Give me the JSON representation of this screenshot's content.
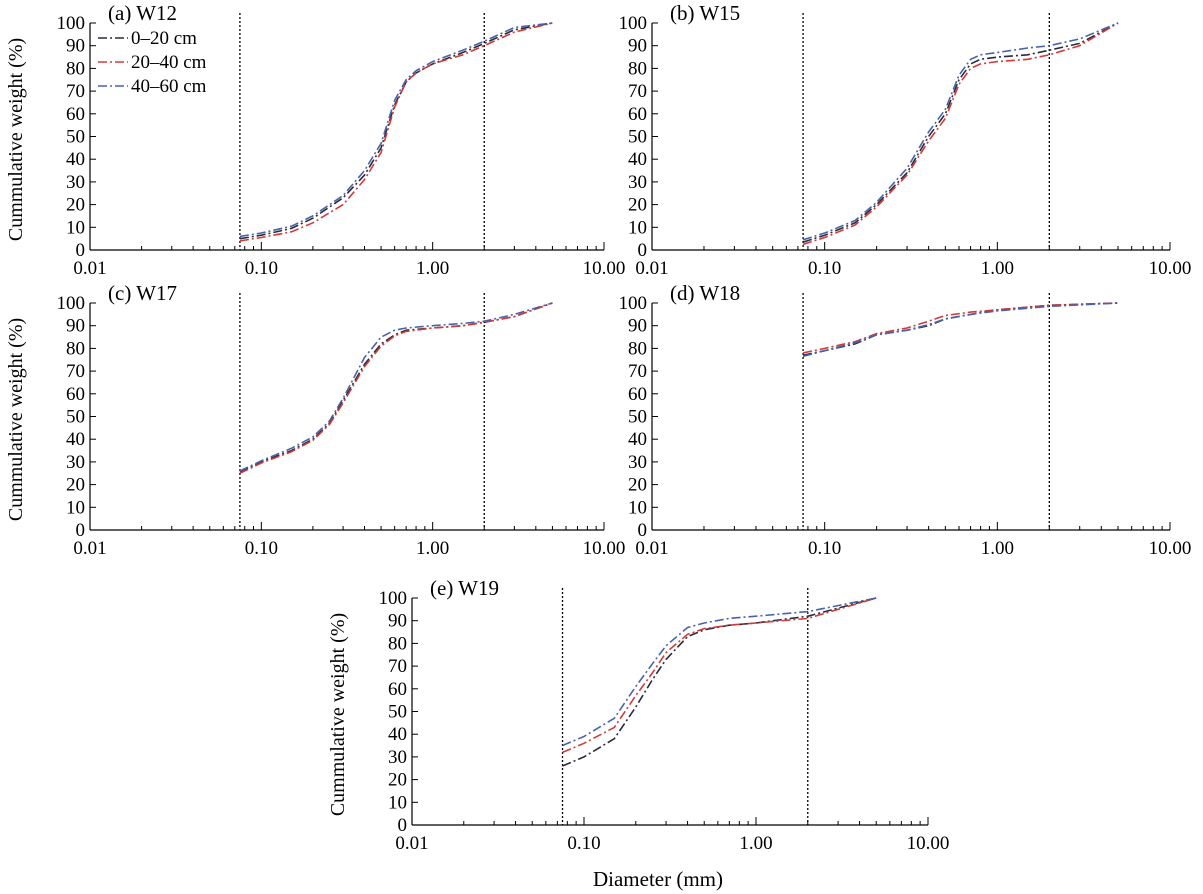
{
  "figure": {
    "xlabel": "Diameter (mm)",
    "ylabel": "Cummulative weight (%)"
  },
  "legend": [
    {
      "label": "0–20 cm",
      "color": "#2b2b3a"
    },
    {
      "label": "20–40 cm",
      "color": "#d23a3a"
    },
    {
      "label": "40–60 cm",
      "color": "#4a63a8"
    }
  ],
  "chart_data": [
    {
      "type": "line",
      "title": "(a) W12",
      "xlabel": "",
      "ylabel": "Cummulative weight (%)",
      "xscale": "log",
      "xlim": [
        0.01,
        10
      ],
      "ylim": [
        0,
        100
      ],
      "xticks": [
        "0.01",
        "0.10",
        "1.00",
        "10.00"
      ],
      "yticks": [
        "0",
        "10",
        "20",
        "30",
        "40",
        "50",
        "60",
        "70",
        "80",
        "90",
        "100"
      ],
      "reference_lines_x": [
        0.075,
        2.0
      ],
      "legend_position": "top-left",
      "series": [
        {
          "name": "0–20 cm",
          "color": "#2b2b3a",
          "x": [
            0.075,
            0.1,
            0.15,
            0.2,
            0.3,
            0.4,
            0.5,
            0.6,
            0.7,
            0.8,
            1.0,
            1.5,
            2.0,
            3.0,
            5.0
          ],
          "y": [
            5,
            6.5,
            9.5,
            14,
            23,
            33,
            45,
            64,
            74,
            78,
            82,
            87,
            91,
            97,
            100
          ]
        },
        {
          "name": "20–40 cm",
          "color": "#d23a3a",
          "x": [
            0.075,
            0.1,
            0.15,
            0.2,
            0.3,
            0.4,
            0.5,
            0.6,
            0.7,
            0.8,
            1.0,
            1.5,
            2.0,
            3.0,
            5.0
          ],
          "y": [
            4,
            5.5,
            8,
            12,
            20,
            31,
            43,
            63,
            74,
            78,
            82,
            86,
            90,
            96,
            100
          ]
        },
        {
          "name": "40–60 cm",
          "color": "#4a63a8",
          "x": [
            0.075,
            0.1,
            0.15,
            0.2,
            0.3,
            0.4,
            0.5,
            0.6,
            0.7,
            0.8,
            1.0,
            1.5,
            2.0,
            3.0,
            5.0
          ],
          "y": [
            6,
            7.5,
            10.5,
            15,
            24,
            35,
            47,
            66,
            75,
            79,
            83,
            88,
            92,
            98,
            100
          ]
        }
      ]
    },
    {
      "type": "line",
      "title": "(b) W15",
      "xlabel": "",
      "ylabel": "",
      "xscale": "log",
      "xlim": [
        0.01,
        10
      ],
      "ylim": [
        0,
        100
      ],
      "xticks": [
        "0.01",
        "0.10",
        "1.00",
        "10.00"
      ],
      "yticks": [
        "0",
        "10",
        "20",
        "30",
        "40",
        "50",
        "60",
        "70",
        "80",
        "90",
        "100"
      ],
      "reference_lines_x": [
        0.075,
        2.0
      ],
      "series": [
        {
          "name": "0–20 cm",
          "color": "#2b2b3a",
          "x": [
            0.075,
            0.1,
            0.15,
            0.2,
            0.3,
            0.4,
            0.5,
            0.6,
            0.7,
            0.8,
            1.0,
            1.5,
            2.0,
            3.0,
            5.0
          ],
          "y": [
            3.5,
            6.5,
            12,
            20,
            34,
            50,
            60,
            75,
            82,
            84,
            85,
            86,
            88,
            91,
            100
          ]
        },
        {
          "name": "20–40 cm",
          "color": "#d23a3a",
          "x": [
            0.075,
            0.1,
            0.15,
            0.2,
            0.3,
            0.4,
            0.5,
            0.6,
            0.7,
            0.8,
            1.0,
            1.5,
            2.0,
            3.0,
            5.0
          ],
          "y": [
            2.5,
            5.5,
            11,
            19,
            33,
            48,
            58,
            73,
            80,
            82,
            83,
            84,
            86,
            90,
            100
          ]
        },
        {
          "name": "40–60 cm",
          "color": "#4a63a8",
          "x": [
            0.075,
            0.1,
            0.15,
            0.2,
            0.3,
            0.4,
            0.5,
            0.6,
            0.7,
            0.8,
            1.0,
            1.5,
            2.0,
            3.0,
            5.0
          ],
          "y": [
            4.5,
            7.5,
            13,
            21,
            36,
            52,
            62,
            77,
            84,
            86,
            87,
            89,
            90,
            93,
            100
          ]
        }
      ]
    },
    {
      "type": "line",
      "title": "(c) W17",
      "xlabel": "",
      "ylabel": "Cummulative weight (%)",
      "xscale": "log",
      "xlim": [
        0.01,
        10
      ],
      "ylim": [
        0,
        100
      ],
      "xticks": [
        "0.01",
        "0.10",
        "1.00",
        "10.00"
      ],
      "yticks": [
        "0",
        "10",
        "20",
        "30",
        "40",
        "50",
        "60",
        "70",
        "80",
        "90",
        "100"
      ],
      "reference_lines_x": [
        0.075,
        2.0
      ],
      "series": [
        {
          "name": "0–20 cm",
          "color": "#2b2b3a",
          "x": [
            0.075,
            0.1,
            0.15,
            0.2,
            0.25,
            0.3,
            0.4,
            0.5,
            0.6,
            0.7,
            1.0,
            1.5,
            2.0,
            3.0,
            5.0
          ],
          "y": [
            25.5,
            30,
            35,
            40,
            47,
            57,
            73,
            82,
            86,
            88,
            89,
            90,
            91.5,
            94,
            100
          ]
        },
        {
          "name": "20–40 cm",
          "color": "#d23a3a",
          "x": [
            0.075,
            0.1,
            0.15,
            0.2,
            0.25,
            0.3,
            0.4,
            0.5,
            0.6,
            0.7,
            1.0,
            1.5,
            2.0,
            3.0,
            5.0
          ],
          "y": [
            25,
            29.5,
            34.5,
            39.5,
            46.5,
            56,
            72,
            81,
            85.5,
            87.5,
            89,
            90,
            91.5,
            94,
            100
          ]
        },
        {
          "name": "40–60 cm",
          "color": "#4a63a8",
          "x": [
            0.075,
            0.1,
            0.15,
            0.2,
            0.25,
            0.3,
            0.4,
            0.5,
            0.6,
            0.7,
            1.0,
            1.5,
            2.0,
            3.0,
            5.0
          ],
          "y": [
            26,
            30.5,
            36,
            41,
            48,
            58,
            76,
            85,
            88,
            89,
            90,
            91,
            92,
            95,
            100
          ]
        }
      ]
    },
    {
      "type": "line",
      "title": "(d) W18",
      "xlabel": "",
      "ylabel": "",
      "xscale": "log",
      "xlim": [
        0.01,
        10
      ],
      "ylim": [
        0,
        100
      ],
      "xticks": [
        "0.01",
        "0.10",
        "1.00",
        "10.00"
      ],
      "yticks": [
        "0",
        "10",
        "20",
        "30",
        "40",
        "50",
        "60",
        "70",
        "80",
        "90",
        "100"
      ],
      "reference_lines_x": [
        0.075,
        2.0
      ],
      "series": [
        {
          "name": "0–20 cm",
          "color": "#2b2b3a",
          "x": [
            0.075,
            0.1,
            0.15,
            0.2,
            0.3,
            0.4,
            0.5,
            0.7,
            1.0,
            2.0,
            5.0
          ],
          "y": [
            77,
            79,
            82,
            86,
            88,
            90,
            93,
            95,
            97,
            99,
            100
          ]
        },
        {
          "name": "20–40 cm",
          "color": "#d23a3a",
          "x": [
            0.075,
            0.1,
            0.15,
            0.2,
            0.3,
            0.4,
            0.5,
            0.7,
            1.0,
            2.0,
            5.0
          ],
          "y": [
            78,
            80,
            83,
            86.5,
            89,
            92,
            94.5,
            96,
            97,
            99,
            100
          ]
        },
        {
          "name": "40–60 cm",
          "color": "#4a63a8",
          "x": [
            0.075,
            0.1,
            0.15,
            0.2,
            0.3,
            0.4,
            0.5,
            0.7,
            1.0,
            2.0,
            5.0
          ],
          "y": [
            76.5,
            79,
            82.5,
            86,
            88,
            90.5,
            93,
            95,
            96.5,
            98.5,
            100
          ]
        }
      ]
    },
    {
      "type": "line",
      "title": "(e) W19",
      "xlabel": "Diameter (mm)",
      "ylabel": "Cummulative weight (%)",
      "xscale": "log",
      "xlim": [
        0.01,
        10
      ],
      "ylim": [
        0,
        100
      ],
      "xticks": [
        "0.01",
        "0.10",
        "1.00",
        "10.00"
      ],
      "yticks": [
        "0",
        "10",
        "20",
        "30",
        "40",
        "50",
        "60",
        "70",
        "80",
        "90",
        "100"
      ],
      "reference_lines_x": [
        0.075,
        2.0
      ],
      "series": [
        {
          "name": "0–20 cm",
          "color": "#2b2b3a",
          "x": [
            0.075,
            0.1,
            0.15,
            0.2,
            0.25,
            0.3,
            0.4,
            0.5,
            0.7,
            1.0,
            2.0,
            5.0
          ],
          "y": [
            26,
            30,
            38,
            52,
            64,
            73,
            83,
            86,
            88,
            89,
            92,
            100
          ]
        },
        {
          "name": "20–40 cm",
          "color": "#d23a3a",
          "x": [
            0.075,
            0.1,
            0.15,
            0.2,
            0.25,
            0.3,
            0.4,
            0.5,
            0.7,
            1.0,
            2.0,
            5.0
          ],
          "y": [
            32,
            36,
            43,
            57,
            67,
            76,
            84,
            86.5,
            88,
            89,
            91,
            100
          ]
        },
        {
          "name": "40–60 cm",
          "color": "#4a63a8",
          "x": [
            0.075,
            0.1,
            0.15,
            0.2,
            0.25,
            0.3,
            0.4,
            0.5,
            0.7,
            1.0,
            2.0,
            5.0
          ],
          "y": [
            35,
            39,
            47,
            61,
            71,
            79,
            87,
            89,
            91,
            92,
            94,
            100
          ]
        }
      ]
    }
  ]
}
